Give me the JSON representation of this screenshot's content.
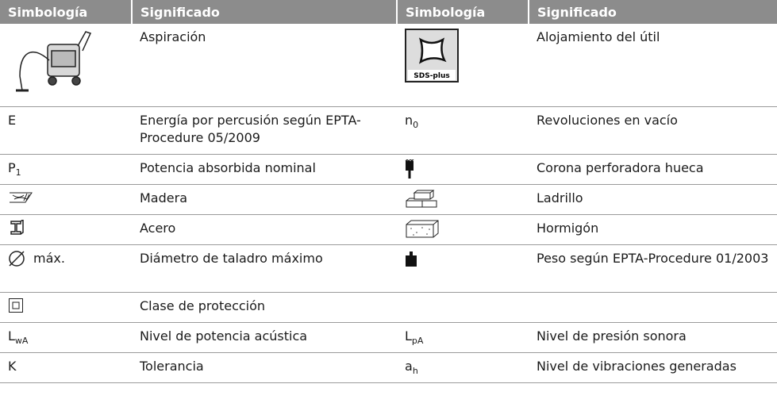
{
  "table": {
    "header": [
      "Simbología",
      "Significado",
      "Simbología",
      "Significado"
    ],
    "rows": [
      {
        "meaning_left": "Aspiración",
        "icon_label_right": "SDS-plus",
        "meaning_right": "Alojamiento del útil"
      },
      {
        "symbol_left": "E",
        "meaning_left": "Energía por percusión según EPTA-Procedure 05/2009",
        "symbol_right": {
          "base": "n",
          "sub": "0"
        },
        "meaning_right": "Revoluciones en vacío"
      },
      {
        "symbol_left": {
          "base": "P",
          "sub": "1"
        },
        "meaning_left": "Potencia absorbida nominal",
        "meaning_right": "Corona perforadora hueca"
      },
      {
        "meaning_left": "Madera",
        "meaning_right": "Ladrillo"
      },
      {
        "meaning_left": "Acero",
        "meaning_right": "Hormigón"
      },
      {
        "symbol_left": "máx.",
        "meaning_left": "Diámetro de taladro máximo",
        "meaning_right": "Peso según EPTA-Procedure 01/2003"
      },
      {
        "meaning_left": "Clase de protección"
      },
      {
        "symbol_left": {
          "base": "L",
          "sub": "wA"
        },
        "meaning_left": "Nivel de potencia acústica",
        "symbol_right": {
          "base": "L",
          "sub": "pA"
        },
        "meaning_right": "Nivel de presión sonora"
      },
      {
        "symbol_left": "K",
        "meaning_left": "Tolerancia",
        "symbol_right": {
          "base": "a",
          "sub": "h"
        },
        "meaning_right": "Nivel de vibraciones generadas"
      }
    ]
  }
}
